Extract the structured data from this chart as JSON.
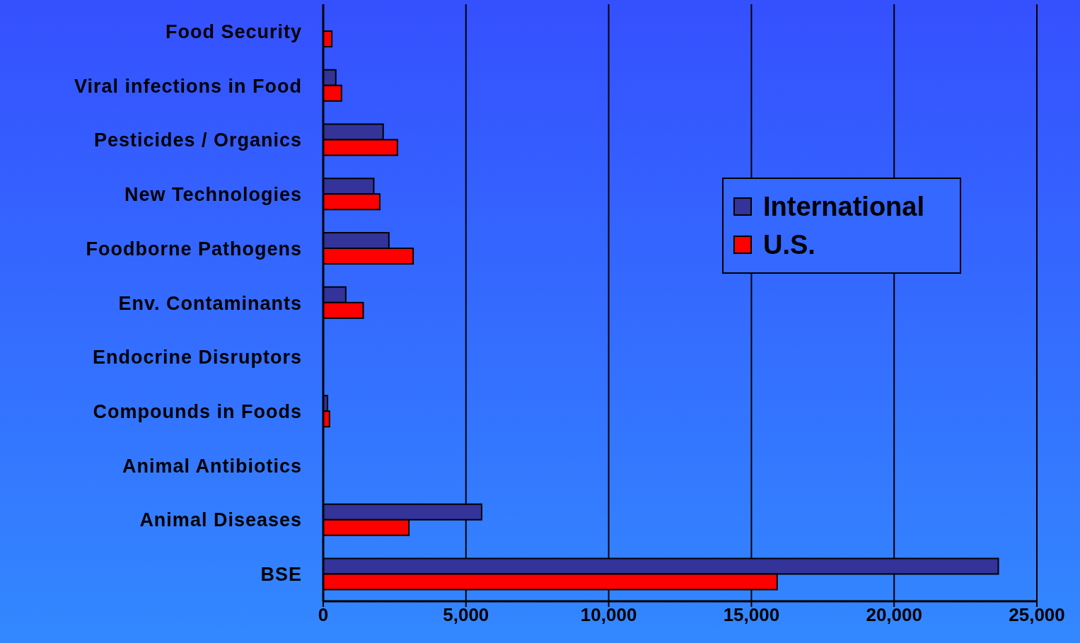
{
  "chart_data": {
    "type": "bar",
    "orientation": "horizontal",
    "categories": [
      "Food Security",
      "Viral infections in Food",
      "Pesticides / Organics",
      "New Technologies",
      "Foodborne Pathogens",
      "Env. Contaminants",
      "Endocrine Disruptors",
      "Compounds in Foods",
      "Animal Antibiotics",
      "Animal Diseases",
      "BSE"
    ],
    "series": [
      {
        "name": "International",
        "color": "#333399",
        "values": [
          null,
          440,
          2100,
          1770,
          2300,
          790,
          null,
          150,
          null,
          5550,
          23650
        ]
      },
      {
        "name": "U.S.",
        "color": "#ff0000",
        "values": [
          300,
          640,
          2600,
          1980,
          3150,
          1400,
          null,
          220,
          null,
          3000,
          15900
        ]
      }
    ],
    "xlim": [
      0,
      25000
    ],
    "xticks": [
      {
        "value": 0,
        "label": "0"
      },
      {
        "value": 5000,
        "label": "5,000"
      },
      {
        "value": 10000,
        "label": "10,000"
      },
      {
        "value": 15000,
        "label": "15,000"
      },
      {
        "value": 20000,
        "label": "20,000"
      },
      {
        "value": 25000,
        "label": "25,000"
      }
    ],
    "grid": "x",
    "legend": "right"
  }
}
